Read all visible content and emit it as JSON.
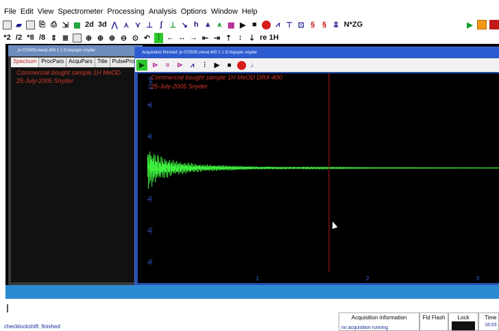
{
  "menu": [
    "File",
    "Edit",
    "View",
    "Spectrometer",
    "Processing",
    "Analysis",
    "Options",
    "Window",
    "Help"
  ],
  "toolbar1": {
    "b2d": "2d",
    "b3d": "3d",
    "acq_cmd": "N*ZG"
  },
  "toolbar2": {
    "mul2": "*2",
    "div2": "/2",
    "mul8": "*8",
    "div8": "/8",
    "re": "re 1H"
  },
  "bg_window": {
    "title": "jn-072505.meod.400  1  1  D:\\topspin  snyder",
    "tabs": [
      "Spectrum",
      "ProcPars",
      "AcquPars",
      "Title",
      "PulseProg"
    ],
    "active_tab": "Spectrum",
    "lines": [
      "Commercial bought sample   1H   MeOD",
      "25-July-2005   Snyder"
    ]
  },
  "fg_window": {
    "title": "Acquisition finished: jn-072505.meod.400  1  1  D:\\topspin  snyder",
    "lines": [
      "Commercial bought sample   1H   MeOD   DRX-400",
      "25-July-2005   Snyder"
    ],
    "y_unit": "[*1e6]"
  },
  "chart_data": {
    "type": "line",
    "title": "",
    "xlabel": "",
    "ylabel": "[*1e6]",
    "x_ticks": [
      "1",
      "2",
      "3"
    ],
    "y_ticks": [
      "20",
      "10",
      "0",
      "-10",
      "-20",
      "-30"
    ],
    "xlim": [
      0,
      3.2
    ],
    "ylim": [
      -33,
      30
    ],
    "series": [
      {
        "color": "#3ef03e",
        "description_points": [
          {
            "x": 0.0,
            "y": 6.0
          },
          {
            "x": 0.1,
            "y": 3.5
          },
          {
            "x": 0.25,
            "y": 2.0
          },
          {
            "x": 0.5,
            "y": 1.0
          },
          {
            "x": 1.0,
            "y": 0.4
          },
          {
            "x": 1.5,
            "y": 0.2
          },
          {
            "x": 2.0,
            "y": 0.1
          },
          {
            "x": 3.2,
            "y": 0.05
          }
        ]
      }
    ],
    "cursor_x": 1.65,
    "grid": false
  },
  "status": {
    "message": "checklockshift: finished",
    "acq_header": "Acquisition information",
    "acq_value": "no acquisition running",
    "fid_flash": "Fid Flash",
    "lock": "Lock",
    "time_label": "Time",
    "time_value": "16:03"
  },
  "colors": {
    "accent": "#2c5ad0",
    "signal": "#3ef03e",
    "annotation": "#d23a2a",
    "cursor_line": "#b81c1c"
  }
}
